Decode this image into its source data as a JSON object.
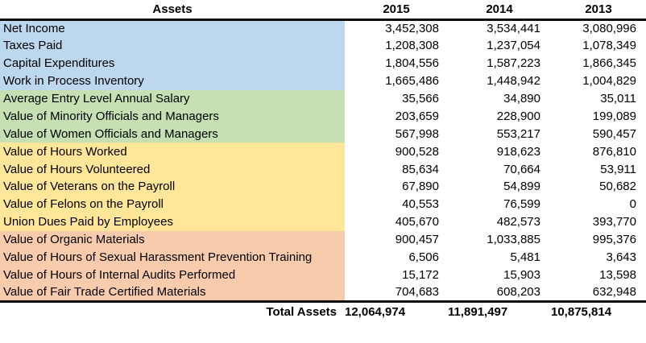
{
  "table": {
    "header": {
      "assets_label": "Assets",
      "years": [
        "2015",
        "2014",
        "2013"
      ]
    },
    "sections": [
      {
        "name": "financial-assets",
        "color": "#BDD7EE",
        "rows": [
          {
            "label": "Net Income",
            "values": [
              "3,452,308",
              "3,534,441",
              "3,080,996"
            ]
          },
          {
            "label": "Taxes Paid",
            "values": [
              "1,208,308",
              "1,237,054",
              "1,078,349"
            ]
          },
          {
            "label": "Capital Expenditures",
            "values": [
              "1,804,556",
              "1,587,223",
              "1,866,345"
            ]
          },
          {
            "label": "Work in Process Inventory",
            "values": [
              "1,665,486",
              "1,448,942",
              "1,004,829"
            ]
          }
        ]
      },
      {
        "name": "workforce-value-assets",
        "color": "#C6E0B4",
        "rows": [
          {
            "label": "Average Entry Level Annual Salary",
            "values": [
              "35,566",
              "34,890",
              "35,011"
            ]
          },
          {
            "label": "Value of Minority Officials and Managers",
            "values": [
              "203,659",
              "228,900",
              "199,089"
            ]
          },
          {
            "label": "Value of Women Officials and Managers",
            "values": [
              "567,998",
              "553,217",
              "590,457"
            ]
          }
        ]
      },
      {
        "name": "hours-and-payroll-assets",
        "color": "#FFE699",
        "rows": [
          {
            "label": "Value of Hours Worked",
            "values": [
              "900,528",
              "918,623",
              "876,810"
            ]
          },
          {
            "label": "Value of Hours Volunteered",
            "values": [
              "85,634",
              "70,664",
              "53,911"
            ]
          },
          {
            "label": "Value of Veterans on the Payroll",
            "values": [
              "67,890",
              "54,899",
              "50,682"
            ]
          },
          {
            "label": "Value of Felons on the Payroll",
            "values": [
              "40,553",
              "76,599",
              "0"
            ]
          },
          {
            "label": "Union Dues Paid by Employees",
            "values": [
              "405,670",
              "482,573",
              "393,770"
            ]
          }
        ]
      },
      {
        "name": "materials-and-compliance-assets",
        "color": "#F8CBAD",
        "rows": [
          {
            "label": "Value of Organic Materials",
            "values": [
              "900,457",
              "1,033,885",
              "995,376"
            ]
          },
          {
            "label": "Value of Hours of Sexual Harassment Prevention Training",
            "values": [
              "6,506",
              "5,481",
              "3,643"
            ]
          },
          {
            "label": "Value of Hours of Internal Audits Performed",
            "values": [
              "15,172",
              "15,903",
              "13,598"
            ]
          },
          {
            "label": "Value of Fair Trade Certified Materials",
            "values": [
              "704,683",
              "608,203",
              "632,948"
            ]
          }
        ]
      }
    ],
    "total": {
      "label": "Total Assets",
      "values": [
        "12,064,974",
        "11,891,497",
        "10,875,814"
      ]
    }
  }
}
